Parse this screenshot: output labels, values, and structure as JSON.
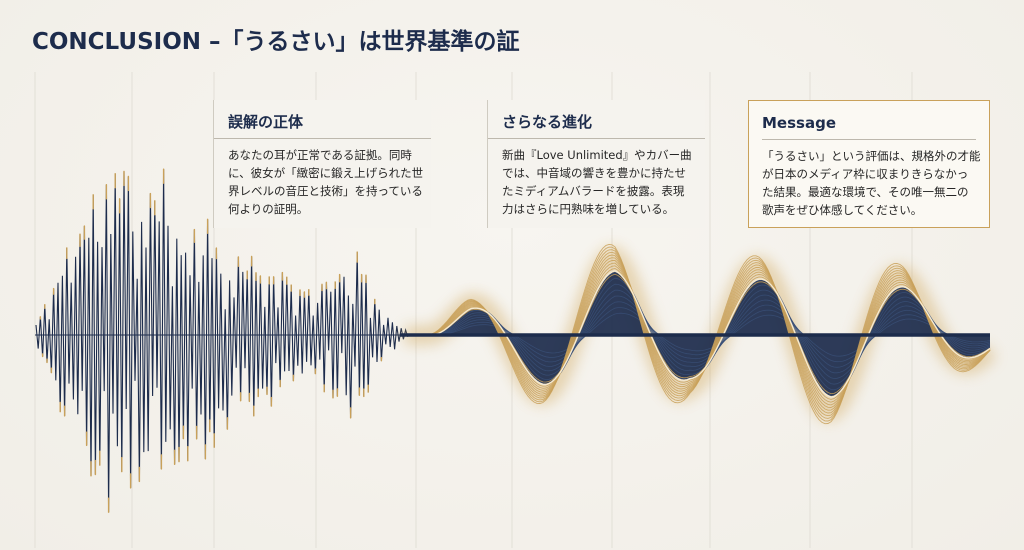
{
  "title": "CONCLUSION –「うるさい」は世界基準の証",
  "panels": [
    {
      "heading": "誤解の正体",
      "lines": [
        "あなたの耳が正常である証拠。同時",
        "に、彼女が「緻密に鍛え上げられた世",
        "界レベルの音圧と技術」を持っている",
        "何よりの証明。"
      ]
    },
    {
      "heading": "さらなる進化",
      "lines": [
        "新曲『Love Unlimited』やカバー曲",
        "では、中音域の響きを豊かに持たせ",
        "たミディアムバラードを披露。表現",
        "力はさらに円熟味を増している。"
      ]
    },
    {
      "heading": "Message",
      "lines": [
        "「うるさい」という評価は、規格外の才能",
        "が日本のメディア枠に収まりきらなかっ",
        "た結果。最適な環境で、その唯一無二の",
        "歌声をぜひ体感してください。"
      ]
    }
  ],
  "colors": {
    "navy": "#1d2c4c",
    "gold": "#c9a15a",
    "background": "#f4f2ec"
  }
}
